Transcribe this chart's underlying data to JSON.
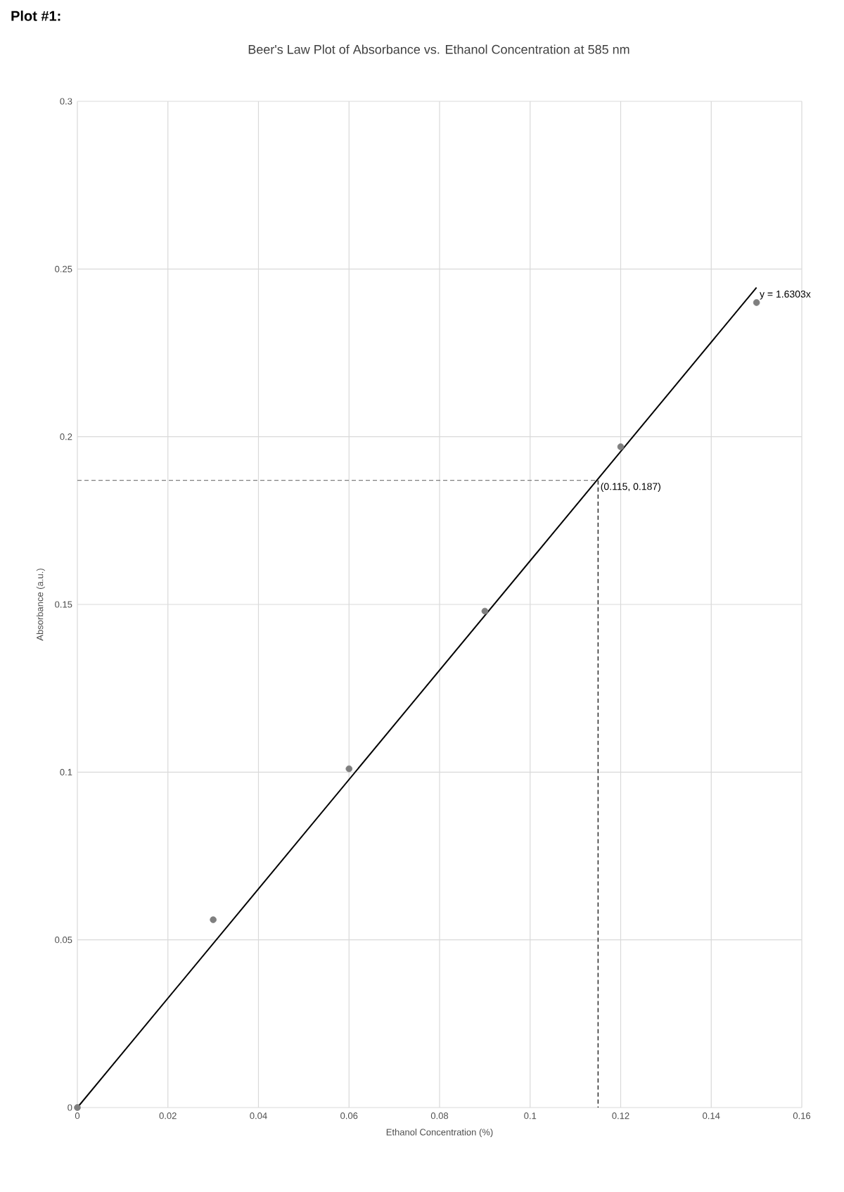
{
  "chart_data": {
    "type": "scatter",
    "title": "Beer's Law Plot of Absorbance vs. Ethanol Concentration at 585 nm",
    "xlabel": "Ethanol Concentration (%)",
    "ylabel": "Absorbance (a.u.)",
    "annotations": [
      "Plot #1:",
      "y = 1.6303x",
      {
        "text": "(0.115, 0.187)",
        "x": 0.115,
        "y": 0.187
      }
    ],
    "series": [
      {
        "color": "#7f7f7f",
        "marker": "circle",
        "x": [
          0,
          0.03,
          0.06,
          0.09,
          0.12,
          0.15
        ],
        "values": [
          0,
          0.056,
          0.101,
          0.148,
          0.197,
          0.24
        ]
      },
      {
        "type": "line",
        "color": "#000000",
        "x": [
          0,
          0.15
        ],
        "values": [
          0,
          0.2445
        ]
      },
      {
        "type": "line",
        "color": "#7f7f7f",
        "line_style": "dashed",
        "x": [
          0,
          0.115
        ],
        "values": [
          0.187,
          0.187
        ]
      },
      {
        "type": "line",
        "color": "#000000",
        "line_style": "dashed",
        "x": [
          0.115,
          0.115
        ],
        "values": [
          0.187,
          0
        ]
      }
    ],
    "xlim": [
      0,
      0.16
    ],
    "ylim": [
      0,
      0.3
    ],
    "xticks": [
      0,
      0.02,
      0.04,
      0.06,
      0.08,
      0.1,
      0.12,
      0.14,
      0.16
    ],
    "yticks": [
      0,
      0.05,
      0.1,
      0.15,
      0.2,
      0.25,
      0.3
    ],
    "grid": true
  }
}
